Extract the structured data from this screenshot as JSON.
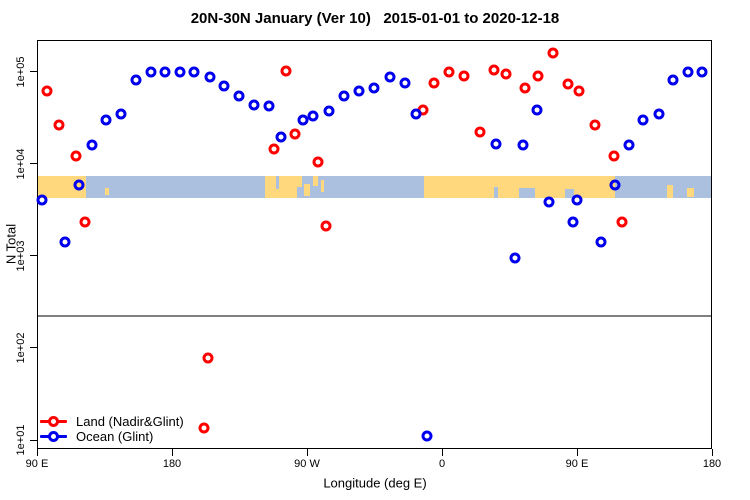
{
  "title": "20N-30N January (Ver 10)   2015-01-01 to 2020-12-18",
  "legend": {
    "items": [
      {
        "label": "Land (Nadir&Glint)",
        "color": "#FF0000"
      },
      {
        "label": "Ocean (Glint)",
        "color": "#0000EE"
      }
    ]
  },
  "chart_data": {
    "type": "scatter",
    "title": "20N-30N January (Ver 10)   2015-01-01 to 2020-12-18",
    "xlabel": "Longitude (deg E)",
    "ylabel": "N Total",
    "x_axis": {
      "range": [
        90,
        540
      ],
      "ticks": [
        {
          "value": 90,
          "label": "90 E"
        },
        {
          "value": 180,
          "label": "180"
        },
        {
          "value": 270,
          "label": "90 W"
        },
        {
          "value": 360,
          "label": "0"
        },
        {
          "value": 450,
          "label": "90 E"
        },
        {
          "value": 540,
          "label": "180"
        }
      ]
    },
    "y_axis": {
      "scale": "log",
      "range": [
        8,
        220000
      ],
      "ticks": [
        {
          "value": 10,
          "label": "1e+01"
        },
        {
          "value": 100,
          "label": "1e+02"
        },
        {
          "value": 1000,
          "label": "1e+03"
        },
        {
          "value": 10000,
          "label": "1e+04"
        },
        {
          "value": 100000,
          "label": "1e+05"
        }
      ]
    },
    "threshold_line": {
      "value": 220,
      "color": "#808080"
    },
    "map_strip": {
      "top_value": 7400,
      "bottom_value": 4200,
      "ocean_color": "#ABC0DE",
      "land_color": "#FFD87D",
      "land_segments": [
        {
          "from": 90,
          "to": 122.5,
          "t": 0,
          "b": 1
        },
        {
          "from": 135,
          "to": 138,
          "t": 0.55,
          "b": 0.85
        },
        {
          "from": 242,
          "to": 263,
          "t": 0,
          "b": 1
        },
        {
          "from": 263.5,
          "to": 266.5,
          "t": 0,
          "b": 0.5
        },
        {
          "from": 268,
          "to": 272,
          "t": 0.35,
          "b": 0.9
        },
        {
          "from": 274,
          "to": 277,
          "t": 0,
          "b": 0.45
        },
        {
          "from": 279,
          "to": 281.5,
          "t": 0.2,
          "b": 0.7
        },
        {
          "from": 348,
          "to": 475,
          "t": 0,
          "b": 1
        },
        {
          "from": 510,
          "to": 514,
          "t": 0.4,
          "b": 1
        },
        {
          "from": 523,
          "to": 528,
          "t": 0.55,
          "b": 0.95
        }
      ],
      "ocean_cutouts": [
        {
          "from": 249.5,
          "to": 251.5,
          "t": 0,
          "b": 0.6
        },
        {
          "from": 394.5,
          "to": 397.5,
          "t": 0.5,
          "b": 1
        },
        {
          "from": 411,
          "to": 422,
          "t": 0.55,
          "b": 1
        },
        {
          "from": 442,
          "to": 448,
          "t": 0.6,
          "b": 1
        }
      ]
    },
    "series": [
      {
        "name": "Land (Nadir&Glint)",
        "color": "#FF0000",
        "marker": "open-circle",
        "points": [
          [
            96.7,
            62000
          ],
          [
            104.7,
            26000
          ],
          [
            116,
            12000
          ],
          [
            122,
            2300
          ],
          [
            201.3,
            13.5
          ],
          [
            204,
            78
          ],
          [
            248,
            14500
          ],
          [
            256,
            102000
          ],
          [
            262,
            21000
          ],
          [
            277.3,
            10500
          ],
          [
            282.7,
            2100
          ],
          [
            347.3,
            38000
          ],
          [
            354.7,
            76000
          ],
          [
            364.7,
            100000
          ],
          [
            374.7,
            89000
          ],
          [
            385.3,
            22000
          ],
          [
            394.7,
            105000
          ],
          [
            402.7,
            93000
          ],
          [
            415.3,
            67000
          ],
          [
            424,
            89000
          ],
          [
            434,
            158000
          ],
          [
            444,
            74000
          ],
          [
            451.3,
            62000
          ],
          [
            462,
            26000
          ],
          [
            474.7,
            12000
          ],
          [
            480,
            2350
          ]
        ]
      },
      {
        "name": "Ocean (Glint)",
        "color": "#0000EE",
        "marker": "open-circle",
        "points": [
          [
            93.3,
            4000
          ],
          [
            108.7,
            1400
          ],
          [
            118,
            5800
          ],
          [
            126.7,
            16000
          ],
          [
            136,
            30000
          ],
          [
            146,
            35000
          ],
          [
            156,
            80000
          ],
          [
            166,
            100000
          ],
          [
            175.3,
            98000
          ],
          [
            185.3,
            100000
          ],
          [
            194.7,
            98000
          ],
          [
            205.3,
            87000
          ],
          [
            214.7,
            69000
          ],
          [
            224.7,
            54000
          ],
          [
            234.7,
            43000
          ],
          [
            244.7,
            42000
          ],
          [
            252.7,
            19500
          ],
          [
            267.3,
            30000
          ],
          [
            274,
            33000
          ],
          [
            284.7,
            37000
          ],
          [
            294.7,
            54000
          ],
          [
            304.7,
            61000
          ],
          [
            314.7,
            66000
          ],
          [
            325.3,
            87000
          ],
          [
            335.3,
            76000
          ],
          [
            342.7,
            35000
          ],
          [
            350,
            11
          ],
          [
            396,
            16500
          ],
          [
            408.7,
            950
          ],
          [
            414,
            16000
          ],
          [
            423.3,
            38000
          ],
          [
            431.3,
            3800
          ],
          [
            447.3,
            2300
          ],
          [
            450,
            4000
          ],
          [
            466,
            1400
          ],
          [
            475.3,
            5800
          ],
          [
            484.7,
            16000
          ],
          [
            494,
            30000
          ],
          [
            504.7,
            35000
          ],
          [
            514,
            80000
          ],
          [
            524,
            100000
          ],
          [
            533.3,
            98000
          ]
        ]
      }
    ],
    "legend_position": "bottom-left-inside",
    "grid": false
  }
}
